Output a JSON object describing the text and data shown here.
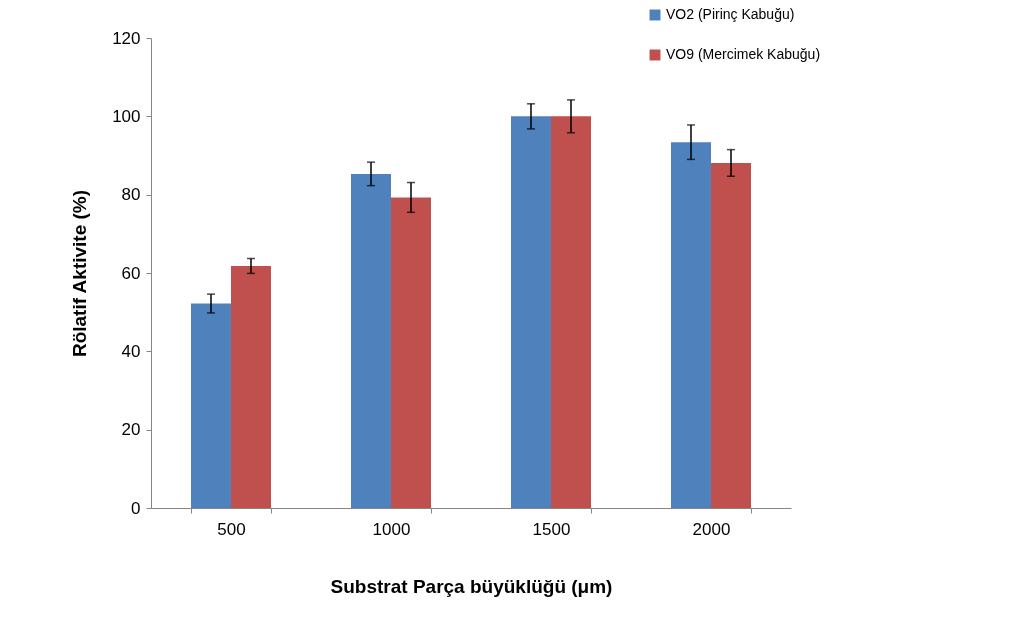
{
  "chart_data": {
    "type": "bar",
    "xlabel": "Substrat Parça büyüklüğü (μm)",
    "ylabel": "Rölatif Aktivite (%)",
    "categories": [
      "500",
      "1000",
      "1500",
      "2000"
    ],
    "series": [
      {
        "name": "VO2 (Pirinç Kabuğu)",
        "color": "#4f81bd",
        "values": [
          52.2,
          85.3,
          100,
          93.4
        ],
        "errors": [
          2.4,
          3,
          3.2,
          4.4
        ]
      },
      {
        "name": "VO9 (Mercimek Kabuğu)",
        "color": "#c0504d",
        "values": [
          61.8,
          79.3,
          100,
          88.1
        ],
        "errors": [
          1.9,
          3.8,
          4.2,
          3.4
        ]
      }
    ],
    "ylim": [
      0,
      120
    ],
    "yticks": [
      0,
      20,
      40,
      60,
      80,
      100,
      120
    ],
    "grid": false,
    "legend": "top right"
  }
}
